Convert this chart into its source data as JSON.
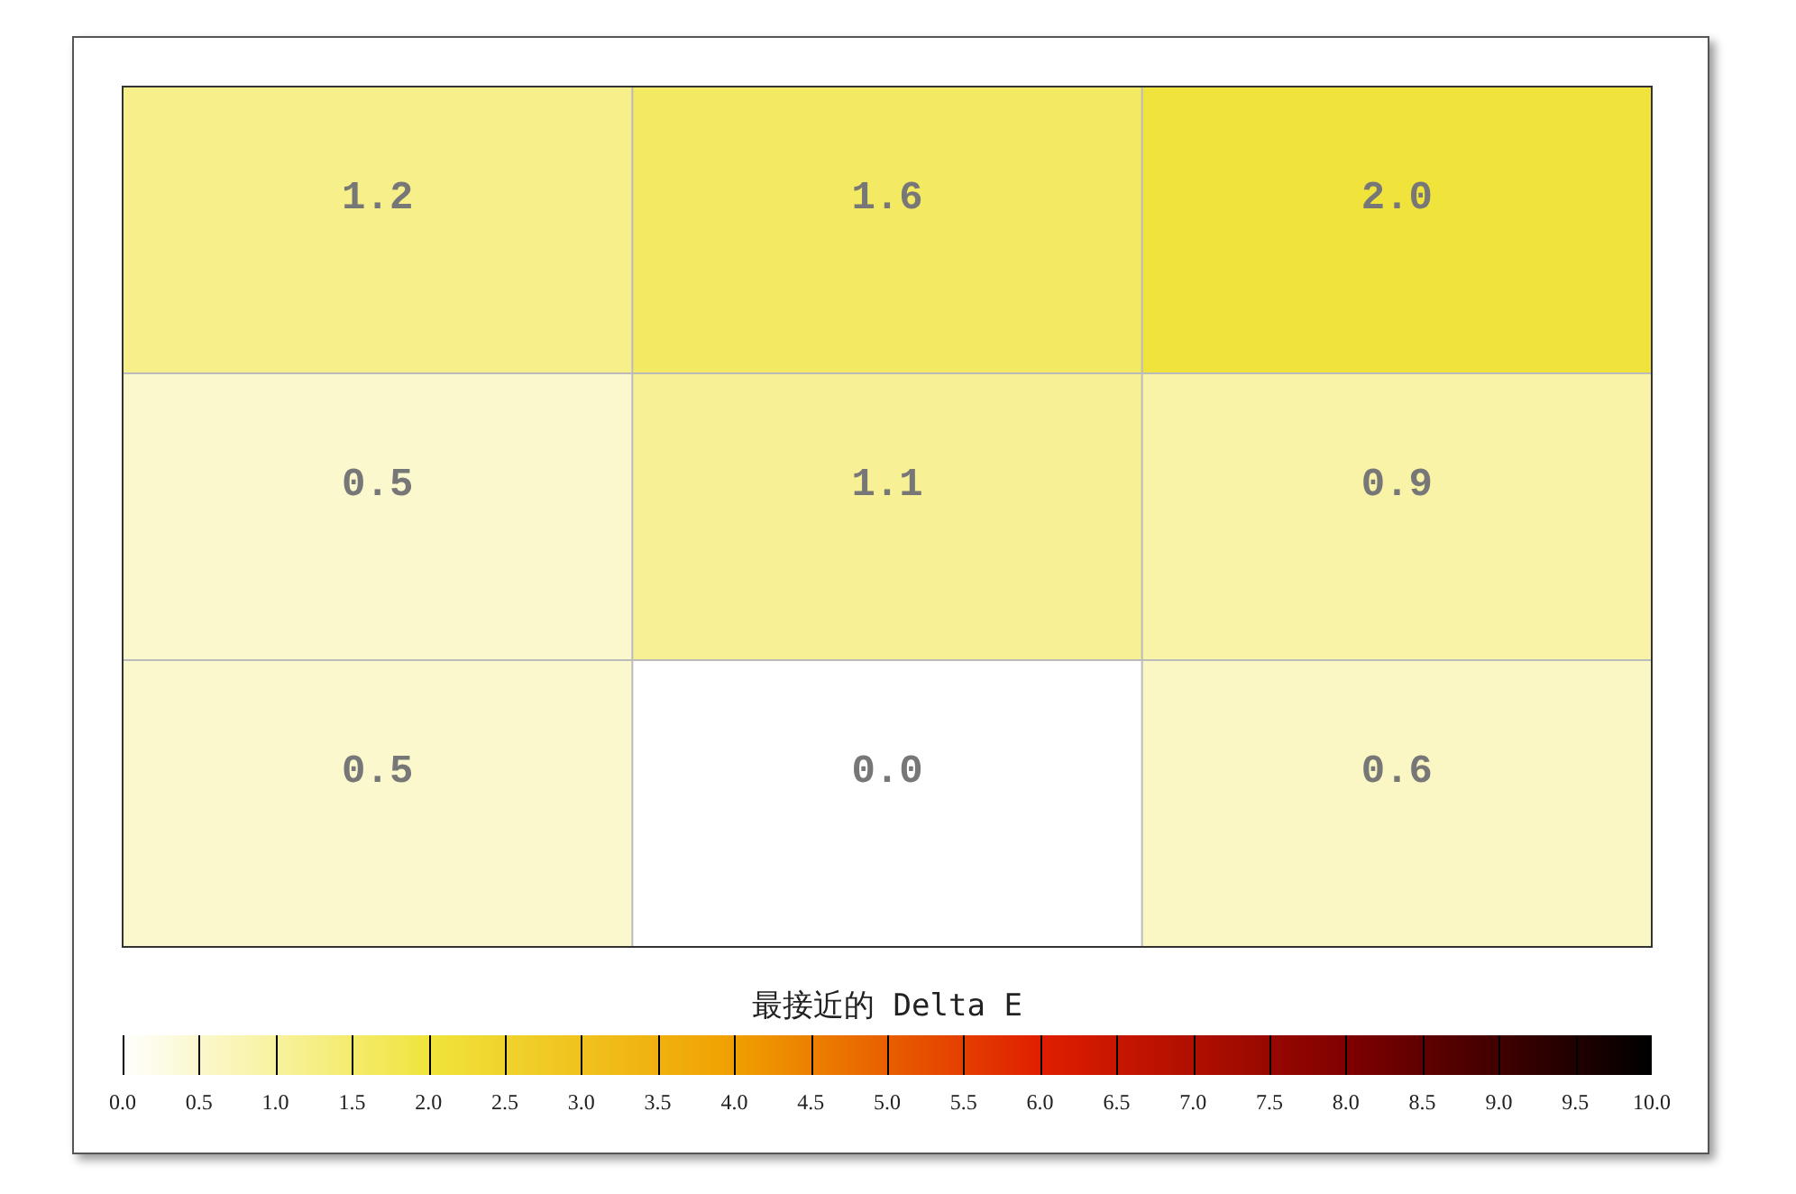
{
  "chart_data": {
    "type": "heatmap",
    "clabel": "最接近的 Delta E",
    "grid": true,
    "categories": [
      null,
      null,
      null
    ],
    "y_categories": [
      null,
      null,
      null
    ],
    "cells": [
      [
        1.2,
        1.6,
        2.0
      ],
      [
        0.5,
        1.1,
        0.9
      ],
      [
        0.5,
        0.0,
        0.6
      ]
    ],
    "cell_labels": [
      [
        "1.2",
        "1.6",
        "2.0"
      ],
      [
        "0.5",
        "1.1",
        "0.9"
      ],
      [
        "0.5",
        "0.0",
        "0.6"
      ]
    ],
    "clim": [
      0,
      10
    ],
    "cticks": [
      {
        "value": 0,
        "label": "0.0"
      },
      {
        "value": 0.5,
        "label": "0.5"
      },
      {
        "value": 1,
        "label": "1.0"
      },
      {
        "value": 1.5,
        "label": "1.5"
      },
      {
        "value": 2,
        "label": "2.0"
      },
      {
        "value": 2.5,
        "label": "2.5"
      },
      {
        "value": 3,
        "label": "3.0"
      },
      {
        "value": 3.5,
        "label": "3.5"
      },
      {
        "value": 4,
        "label": "4.0"
      },
      {
        "value": 4.5,
        "label": "4.5"
      },
      {
        "value": 5,
        "label": "5.0"
      },
      {
        "value": 5.5,
        "label": "5.5"
      },
      {
        "value": 6,
        "label": "6.0"
      },
      {
        "value": 6.5,
        "label": "6.5"
      },
      {
        "value": 7,
        "label": "7.0"
      },
      {
        "value": 7.5,
        "label": "7.5"
      },
      {
        "value": 8,
        "label": "8.0"
      },
      {
        "value": 8.5,
        "label": "8.5"
      },
      {
        "value": 9,
        "label": "9.0"
      },
      {
        "value": 9.5,
        "label": "9.5"
      },
      {
        "value": 10,
        "label": "10.0"
      }
    ]
  }
}
